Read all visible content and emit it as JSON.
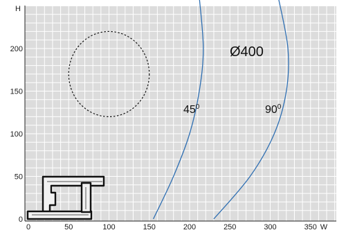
{
  "chart_data": {
    "type": "line",
    "title": "",
    "xlabel": "W",
    "ylabel": "H",
    "xlim": [
      0,
      385
    ],
    "ylim": [
      0,
      260
    ],
    "x_ticks": [
      "0",
      "50",
      "100",
      "150",
      "200",
      "250",
      "300",
      "350"
    ],
    "y_ticks": [
      "0",
      "50",
      "100",
      "150",
      "200"
    ],
    "grid": true,
    "colors": {
      "curve": "#2f6fb2",
      "grid": "#ffffff",
      "background": "#dcdcdc"
    },
    "series": [
      {
        "name": "45⁰",
        "points": [
          [
            155,
            0
          ],
          [
            180,
            50
          ],
          [
            200,
            100
          ],
          [
            212,
            150
          ],
          [
            217,
            200
          ],
          [
            212,
            260
          ]
        ]
      },
      {
        "name": "90⁰",
        "points": [
          [
            230,
            0
          ],
          [
            275,
            50
          ],
          [
            305,
            100
          ],
          [
            320,
            150
          ],
          [
            322,
            200
          ],
          [
            310,
            260
          ]
        ]
      }
    ],
    "annotations": {
      "diameter_label": "Ø400",
      "angle_45_main": "45",
      "angle_45_sup": "0",
      "angle_90_main": "90",
      "angle_90_sup": "0"
    },
    "dashed_circle": {
      "center": [
        100,
        170
      ],
      "radius_value": 50
    }
  },
  "icons": {
    "profile": "window-profile-cross-section-icon"
  }
}
